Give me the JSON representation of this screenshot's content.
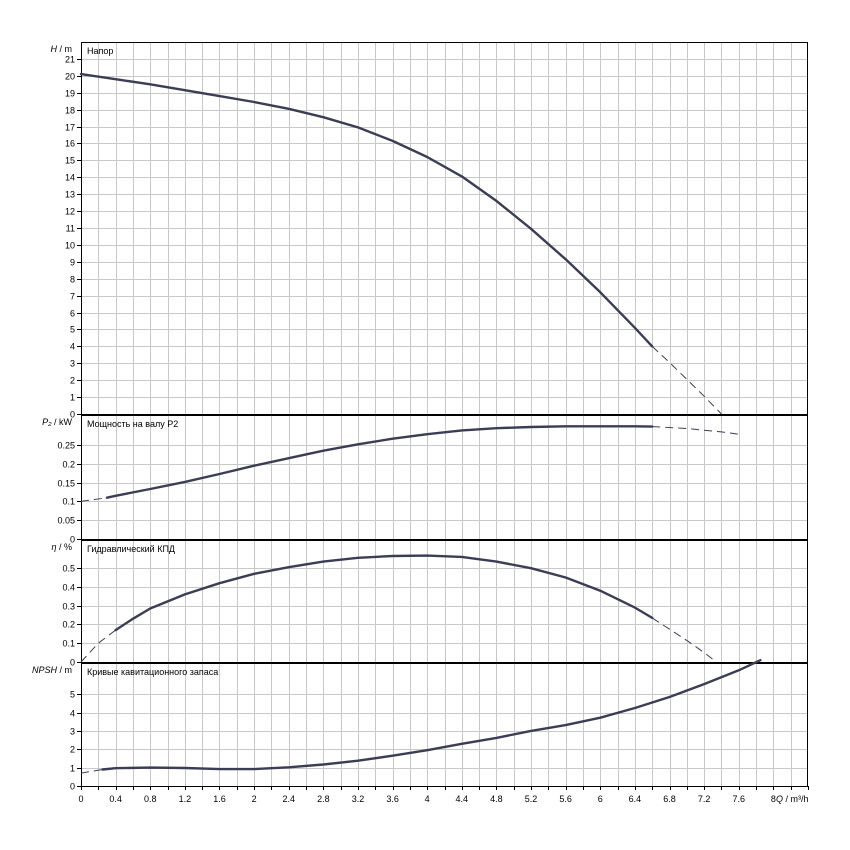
{
  "chart_data": {
    "type": "line",
    "x_axis": {
      "label_q": "Q",
      "label_unit": " / m³/h",
      "range": [
        0,
        8.4
      ],
      "ticks": [
        0,
        0.4,
        0.8,
        1.2,
        1.6,
        2,
        2.4,
        2.8,
        3.2,
        3.6,
        4,
        4.4,
        4.8,
        5.2,
        5.6,
        6,
        6.4,
        6.8,
        7.2,
        7.6,
        8
      ],
      "tick_labels": [
        "0",
        "0.4",
        "0.8",
        "1.2",
        "1.6",
        "2",
        "2.4",
        "2.8",
        "3.2",
        "3.6",
        "4",
        "4.4",
        "4.8",
        "5.2",
        "5.6",
        "6",
        "6.4",
        "6.8",
        "7.2",
        "7.6",
        "8"
      ],
      "minor_step": 0.2
    },
    "grid": true,
    "panels": [
      {
        "key": "head",
        "title": "Напор",
        "ylabel_sym": "H",
        "ylabel_unit": " / m",
        "ylim": [
          0,
          22
        ],
        "ytick_labels": [
          "0",
          "1",
          "2",
          "3",
          "4",
          "5",
          "6",
          "7",
          "8",
          "9",
          "10",
          "11",
          "12",
          "13",
          "14",
          "15",
          "16",
          "17",
          "18",
          "19",
          "20",
          "21"
        ],
        "ytick_values": [
          0,
          1,
          2,
          3,
          4,
          5,
          6,
          7,
          8,
          9,
          10,
          11,
          12,
          13,
          14,
          15,
          16,
          17,
          18,
          19,
          20,
          21
        ],
        "solid": [
          [
            0,
            20.1
          ],
          [
            0.4,
            19.8
          ],
          [
            0.8,
            19.5
          ],
          [
            1.2,
            19.15
          ],
          [
            1.6,
            18.8
          ],
          [
            2.0,
            18.45
          ],
          [
            2.4,
            18.05
          ],
          [
            2.8,
            17.55
          ],
          [
            3.2,
            16.95
          ],
          [
            3.6,
            16.15
          ],
          [
            4.0,
            15.2
          ],
          [
            4.4,
            14.05
          ],
          [
            4.8,
            12.6
          ],
          [
            5.2,
            10.95
          ],
          [
            5.6,
            9.15
          ],
          [
            6.0,
            7.2
          ],
          [
            6.4,
            5.1
          ],
          [
            6.6,
            4.0
          ]
        ],
        "dashed": [
          [
            6.6,
            4.0
          ],
          [
            6.8,
            3.05
          ],
          [
            7.0,
            2.05
          ],
          [
            7.2,
            1.05
          ],
          [
            7.4,
            0.0
          ]
        ]
      },
      {
        "key": "power",
        "title": "Мощность на валу P2",
        "ylabel_sym": "P₂",
        "ylabel_unit": " / kW",
        "ylim": [
          0,
          0.33
        ],
        "ytick_labels": [
          "0",
          "0.05",
          "0.1",
          "0.15",
          "0.2",
          "0.25"
        ],
        "ytick_values": [
          0,
          0.05,
          0.1,
          0.15,
          0.2,
          0.25
        ],
        "solid": [
          [
            0.3,
            0.11
          ],
          [
            0.4,
            0.115
          ],
          [
            0.8,
            0.133
          ],
          [
            1.2,
            0.152
          ],
          [
            1.6,
            0.173
          ],
          [
            2.0,
            0.195
          ],
          [
            2.4,
            0.215
          ],
          [
            2.8,
            0.235
          ],
          [
            3.2,
            0.252
          ],
          [
            3.6,
            0.267
          ],
          [
            4.0,
            0.279
          ],
          [
            4.4,
            0.289
          ],
          [
            4.8,
            0.295
          ],
          [
            5.2,
            0.298
          ],
          [
            5.6,
            0.3
          ],
          [
            6.0,
            0.3
          ],
          [
            6.4,
            0.3
          ],
          [
            6.6,
            0.299
          ]
        ],
        "dashed_start": [
          [
            0,
            0.1
          ],
          [
            0.3,
            0.11
          ]
        ],
        "dashed": [
          [
            6.6,
            0.299
          ],
          [
            7.0,
            0.294
          ],
          [
            7.4,
            0.285
          ],
          [
            7.6,
            0.279
          ]
        ]
      },
      {
        "key": "efficiency",
        "title": "Гидравлический КПД",
        "ylabel_sym": "η",
        "ylabel_unit": " / %",
        "ylim": [
          0,
          0.65
        ],
        "ytick_labels": [
          "0",
          "0.1",
          "0.2",
          "0.3",
          "0.4",
          "0.5"
        ],
        "ytick_values": [
          0,
          0.1,
          0.2,
          0.3,
          0.4,
          0.5
        ],
        "dashed_start": [
          [
            0,
            0.0
          ],
          [
            0.2,
            0.1
          ],
          [
            0.4,
            0.17
          ]
        ],
        "solid": [
          [
            0.4,
            0.17
          ],
          [
            0.6,
            0.23
          ],
          [
            0.8,
            0.285
          ],
          [
            1.2,
            0.36
          ],
          [
            1.6,
            0.42
          ],
          [
            2.0,
            0.47
          ],
          [
            2.4,
            0.505
          ],
          [
            2.8,
            0.535
          ],
          [
            3.2,
            0.555
          ],
          [
            3.6,
            0.565
          ],
          [
            4.0,
            0.567
          ],
          [
            4.4,
            0.56
          ],
          [
            4.8,
            0.535
          ],
          [
            5.2,
            0.5
          ],
          [
            5.6,
            0.45
          ],
          [
            6.0,
            0.38
          ],
          [
            6.4,
            0.29
          ],
          [
            6.6,
            0.235
          ]
        ],
        "dashed": [
          [
            6.6,
            0.235
          ],
          [
            6.8,
            0.175
          ],
          [
            7.0,
            0.115
          ],
          [
            7.2,
            0.05
          ],
          [
            7.3,
            0.015
          ]
        ]
      },
      {
        "key": "npsh",
        "title": "Кривые кавитационного запаса",
        "ylabel_sym": "NPSH",
        "ylabel_unit": " / m",
        "ylim": [
          0,
          6.7
        ],
        "ytick_labels": [
          "0",
          "1",
          "2",
          "3",
          "4",
          "5"
        ],
        "ytick_values": [
          0,
          1,
          2,
          3,
          4,
          5
        ],
        "dashed_start": [
          [
            0,
            0.7
          ],
          [
            0.25,
            0.9
          ]
        ],
        "solid": [
          [
            0.25,
            0.9
          ],
          [
            0.4,
            0.97
          ],
          [
            0.8,
            1.0
          ],
          [
            1.2,
            0.98
          ],
          [
            1.6,
            0.92
          ],
          [
            2.0,
            0.92
          ],
          [
            2.4,
            1.02
          ],
          [
            2.8,
            1.17
          ],
          [
            3.2,
            1.38
          ],
          [
            3.6,
            1.65
          ],
          [
            4.0,
            1.95
          ],
          [
            4.4,
            2.3
          ],
          [
            4.8,
            2.62
          ],
          [
            5.2,
            3.0
          ],
          [
            5.6,
            3.32
          ],
          [
            6.0,
            3.72
          ],
          [
            6.4,
            4.25
          ],
          [
            6.8,
            4.85
          ],
          [
            7.2,
            5.55
          ],
          [
            7.6,
            6.3
          ],
          [
            7.85,
            6.85
          ]
        ],
        "dashed": []
      }
    ]
  }
}
